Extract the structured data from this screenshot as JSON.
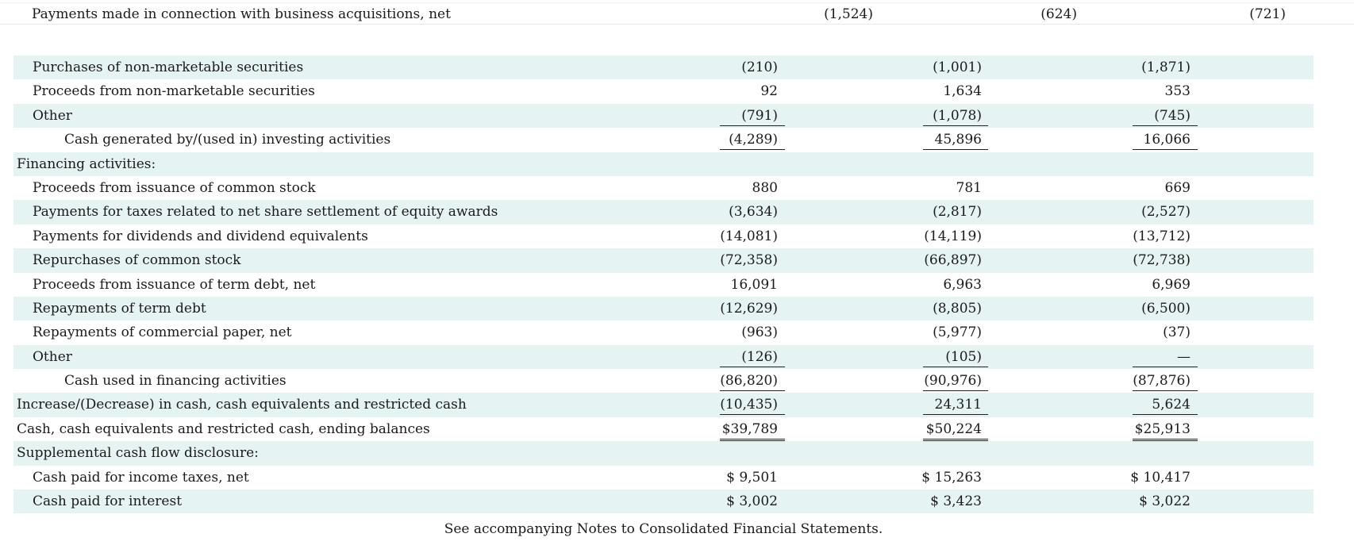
{
  "top_row": {
    "label": "Payments made in connection with business acquisitions, net",
    "values": [
      "(1,524)",
      "(624)",
      "(721)"
    ]
  },
  "rows": [
    {
      "label": "Purchases of non-marketable securities",
      "indent": 1,
      "values": [
        "(210)",
        "(1,001)",
        "(1,871)"
      ],
      "shaded": true,
      "line": ""
    },
    {
      "label": "Proceeds from non-marketable securities",
      "indent": 1,
      "values": [
        "92",
        "1,634",
        "353"
      ],
      "shaded": false,
      "line": ""
    },
    {
      "label": "Other",
      "indent": 1,
      "values": [
        "(791)",
        "(1,078)",
        "(745)"
      ],
      "shaded": true,
      "line": "ul"
    },
    {
      "label": "Cash generated by/(used in) investing activities",
      "indent": 2,
      "values": [
        "(4,289)",
        "45,896",
        "16,066"
      ],
      "shaded": false,
      "line": "ul"
    },
    {
      "label": "Financing activities:",
      "indent": 0,
      "values": [
        "",
        "",
        ""
      ],
      "shaded": true,
      "line": ""
    },
    {
      "label": "Proceeds from issuance of common stock",
      "indent": 1,
      "values": [
        "880",
        "781",
        "669"
      ],
      "shaded": false,
      "line": ""
    },
    {
      "label": "Payments for taxes related to net share settlement of equity awards",
      "indent": 1,
      "values": [
        "(3,634)",
        "(2,817)",
        "(2,527)"
      ],
      "shaded": true,
      "line": ""
    },
    {
      "label": "Payments for dividends and dividend equivalents",
      "indent": 1,
      "values": [
        "(14,081)",
        "(14,119)",
        "(13,712)"
      ],
      "shaded": false,
      "line": ""
    },
    {
      "label": "Repurchases of common stock",
      "indent": 1,
      "values": [
        "(72,358)",
        "(66,897)",
        "(72,738)"
      ],
      "shaded": true,
      "line": ""
    },
    {
      "label": "Proceeds from issuance of term debt, net",
      "indent": 1,
      "values": [
        "16,091",
        "6,963",
        "6,969"
      ],
      "shaded": false,
      "line": ""
    },
    {
      "label": "Repayments of term debt",
      "indent": 1,
      "values": [
        "(12,629)",
        "(8,805)",
        "(6,500)"
      ],
      "shaded": true,
      "line": ""
    },
    {
      "label": "Repayments of commercial paper, net",
      "indent": 1,
      "values": [
        "(963)",
        "(5,977)",
        "(37)"
      ],
      "shaded": false,
      "line": ""
    },
    {
      "label": "Other",
      "indent": 1,
      "values": [
        "(126)",
        "(105)",
        "—"
      ],
      "shaded": true,
      "line": "ul"
    },
    {
      "label": "Cash used in financing activities",
      "indent": 2,
      "values": [
        "(86,820)",
        "(90,976)",
        "(87,876)"
      ],
      "shaded": false,
      "line": "ul"
    },
    {
      "label": "Increase/(Decrease) in cash, cash equivalents and restricted cash",
      "indent": 0,
      "values": [
        "(10,435)",
        "24,311",
        "5,624"
      ],
      "shaded": true,
      "line": "ul"
    },
    {
      "label": "Cash, cash equivalents and restricted cash, ending balances",
      "indent": 0,
      "values": [
        "$39,789",
        "$50,224",
        "$25,913"
      ],
      "shaded": false,
      "line": "dul"
    },
    {
      "label": "Supplemental cash flow disclosure:",
      "indent": 0,
      "values": [
        "",
        "",
        ""
      ],
      "shaded": true,
      "line": ""
    },
    {
      "label": "Cash paid for income taxes, net",
      "indent": 1,
      "values": [
        "$ 9,501",
        "$ 15,263",
        "$ 10,417"
      ],
      "shaded": false,
      "line": ""
    },
    {
      "label": "Cash paid for interest",
      "indent": 1,
      "values": [
        "$ 3,002",
        "$ 3,423",
        "$ 3,022"
      ],
      "shaded": true,
      "line": ""
    }
  ],
  "footnote": "See accompanying Notes to Consolidated Financial Statements."
}
